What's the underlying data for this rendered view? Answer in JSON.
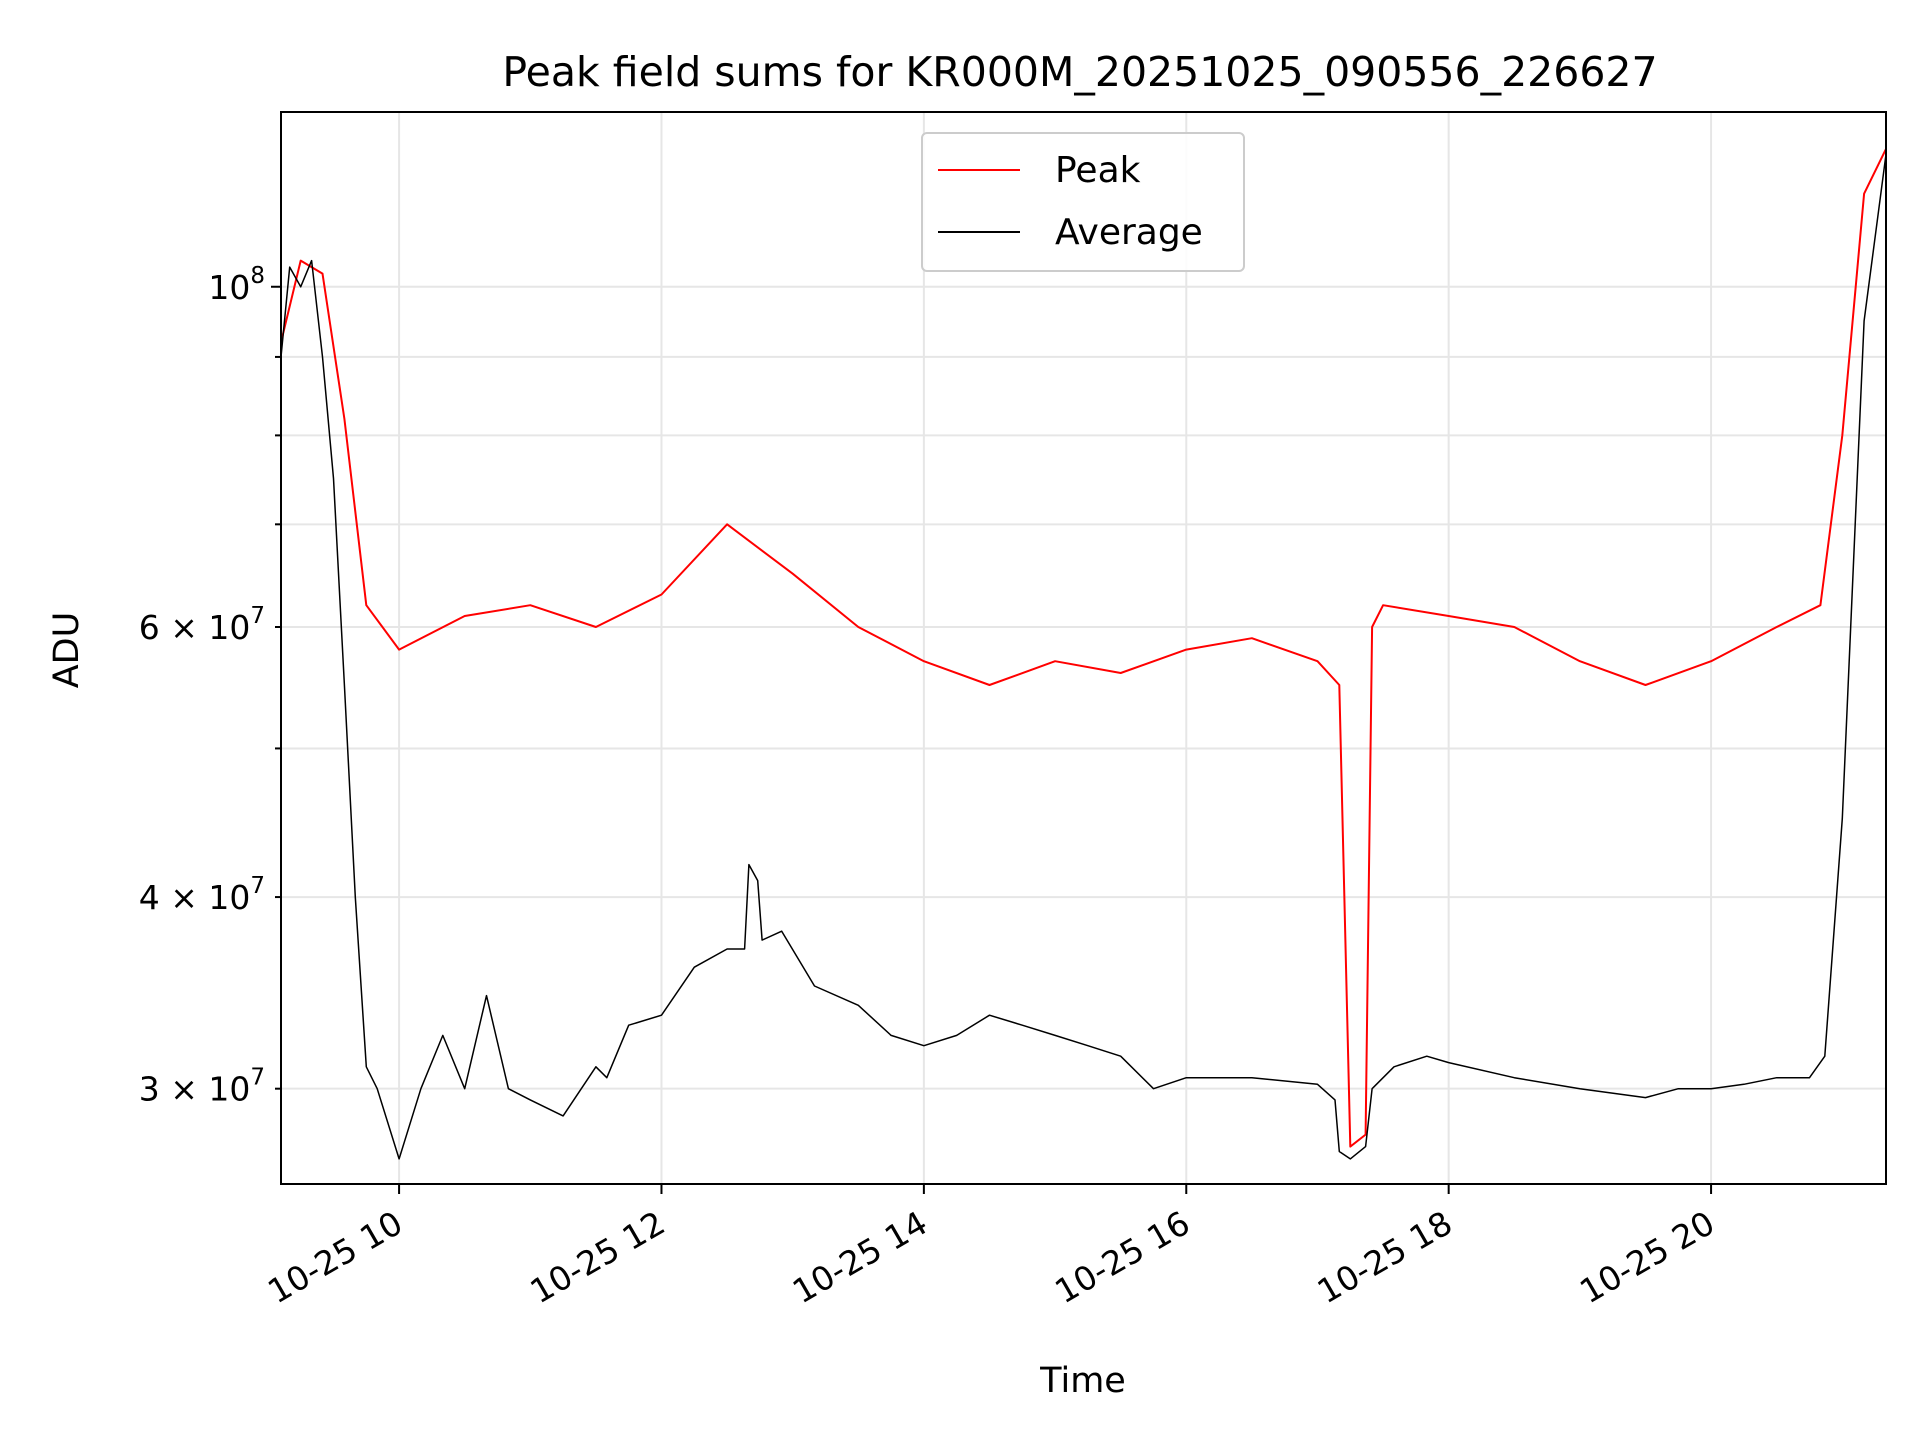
{
  "chart_data": {
    "type": "line",
    "title": "Peak field sums for KR000M_20251025_090556_226627",
    "xlabel": "Time",
    "ylabel": "ADU",
    "yscale": "log",
    "x_range": [
      "2025-10-25 09:06",
      "2025-10-25 21:20"
    ],
    "ylim": [
      26000000,
      130000000
    ],
    "grid": true,
    "legend_position": "top-center",
    "x_ticks": [
      {
        "label": "10-25 10",
        "value": "2025-10-25 10:00"
      },
      {
        "label": "10-25 12",
        "value": "2025-10-25 12:00"
      },
      {
        "label": "10-25 14",
        "value": "2025-10-25 14:00"
      },
      {
        "label": "10-25 16",
        "value": "2025-10-25 16:00"
      },
      {
        "label": "10-25 18",
        "value": "2025-10-25 18:00"
      },
      {
        "label": "10-25 20",
        "value": "2025-10-25 20:00"
      }
    ],
    "y_ticks_major": [
      {
        "base": "10",
        "exp": "8",
        "value": 100000000
      }
    ],
    "y_ticks_minor": [
      {
        "base": "3 × 10",
        "exp": "7",
        "value": 30000000
      },
      {
        "base": "4 × 10",
        "exp": "7",
        "value": 40000000
      },
      {
        "base": "6 × 10",
        "exp": "7",
        "value": 60000000
      }
    ],
    "y_minor_unlabeled": [
      50000000,
      70000000,
      80000000,
      90000000
    ],
    "series": [
      {
        "name": "Peak",
        "color": "#ff0000",
        "x": [
          "2025-10-25 09:06",
          "2025-10-25 09:15",
          "2025-10-25 09:25",
          "2025-10-25 09:35",
          "2025-10-25 09:45",
          "2025-10-25 10:00",
          "2025-10-25 10:30",
          "2025-10-25 11:00",
          "2025-10-25 11:30",
          "2025-10-25 12:00",
          "2025-10-25 12:30",
          "2025-10-25 13:00",
          "2025-10-25 13:30",
          "2025-10-25 14:00",
          "2025-10-25 14:30",
          "2025-10-25 15:00",
          "2025-10-25 15:30",
          "2025-10-25 16:00",
          "2025-10-25 16:30",
          "2025-10-25 17:00",
          "2025-10-25 17:10",
          "2025-10-25 17:15",
          "2025-10-25 17:22",
          "2025-10-25 17:25",
          "2025-10-25 17:30",
          "2025-10-25 18:00",
          "2025-10-25 18:30",
          "2025-10-25 19:00",
          "2025-10-25 19:30",
          "2025-10-25 20:00",
          "2025-10-25 20:30",
          "2025-10-25 20:50",
          "2025-10-25 21:00",
          "2025-10-25 21:10",
          "2025-10-25 21:20"
        ],
        "values": [
          92000000,
          104000000,
          102000000,
          82000000,
          62000000,
          58000000,
          61000000,
          62000000,
          60000000,
          63000000,
          70000000,
          65000000,
          60000000,
          57000000,
          55000000,
          57000000,
          56000000,
          58000000,
          59000000,
          57000000,
          55000000,
          27500000,
          28000000,
          60000000,
          62000000,
          61000000,
          60000000,
          57000000,
          55000000,
          57000000,
          60000000,
          62000000,
          80000000,
          115000000,
          123000000
        ]
      },
      {
        "name": "Average",
        "color": "#000000",
        "x": [
          "2025-10-25 09:06",
          "2025-10-25 09:10",
          "2025-10-25 09:15",
          "2025-10-25 09:20",
          "2025-10-25 09:25",
          "2025-10-25 09:30",
          "2025-10-25 09:35",
          "2025-10-25 09:40",
          "2025-10-25 09:45",
          "2025-10-25 09:50",
          "2025-10-25 10:00",
          "2025-10-25 10:10",
          "2025-10-25 10:20",
          "2025-10-25 10:30",
          "2025-10-25 10:40",
          "2025-10-25 10:50",
          "2025-10-25 11:00",
          "2025-10-25 11:15",
          "2025-10-25 11:30",
          "2025-10-25 11:35",
          "2025-10-25 11:45",
          "2025-10-25 12:00",
          "2025-10-25 12:15",
          "2025-10-25 12:30",
          "2025-10-25 12:38",
          "2025-10-25 12:40",
          "2025-10-25 12:44",
          "2025-10-25 12:46",
          "2025-10-25 12:55",
          "2025-10-25 13:10",
          "2025-10-25 13:30",
          "2025-10-25 13:45",
          "2025-10-25 14:00",
          "2025-10-25 14:15",
          "2025-10-25 14:30",
          "2025-10-25 14:45",
          "2025-10-25 15:00",
          "2025-10-25 15:15",
          "2025-10-25 15:30",
          "2025-10-25 15:45",
          "2025-10-25 16:00",
          "2025-10-25 16:30",
          "2025-10-25 17:00",
          "2025-10-25 17:08",
          "2025-10-25 17:10",
          "2025-10-25 17:15",
          "2025-10-25 17:22",
          "2025-10-25 17:25",
          "2025-10-25 17:35",
          "2025-10-25 17:50",
          "2025-10-25 18:00",
          "2025-10-25 18:30",
          "2025-10-25 19:00",
          "2025-10-25 19:30",
          "2025-10-25 19:45",
          "2025-10-25 20:00",
          "2025-10-25 20:15",
          "2025-10-25 20:30",
          "2025-10-25 20:45",
          "2025-10-25 20:52",
          "2025-10-25 21:00",
          "2025-10-25 21:10",
          "2025-10-25 21:20"
        ],
        "values": [
          90000000,
          103000000,
          100000000,
          104000000,
          90000000,
          75000000,
          55000000,
          40000000,
          31000000,
          30000000,
          27000000,
          30000000,
          32500000,
          30000000,
          34500000,
          30000000,
          29500000,
          28800000,
          31000000,
          30500000,
          33000000,
          33500000,
          36000000,
          37000000,
          37000000,
          42000000,
          41000000,
          37500000,
          38000000,
          35000000,
          34000000,
          32500000,
          32000000,
          32500000,
          33500000,
          33000000,
          32500000,
          32000000,
          31500000,
          30000000,
          30500000,
          30500000,
          30200000,
          29500000,
          27300000,
          27000000,
          27500000,
          30000000,
          31000000,
          31500000,
          31200000,
          30500000,
          30000000,
          29600000,
          30000000,
          30000000,
          30200000,
          30500000,
          30500000,
          31500000,
          45000000,
          95000000,
          122000000
        ]
      }
    ]
  }
}
